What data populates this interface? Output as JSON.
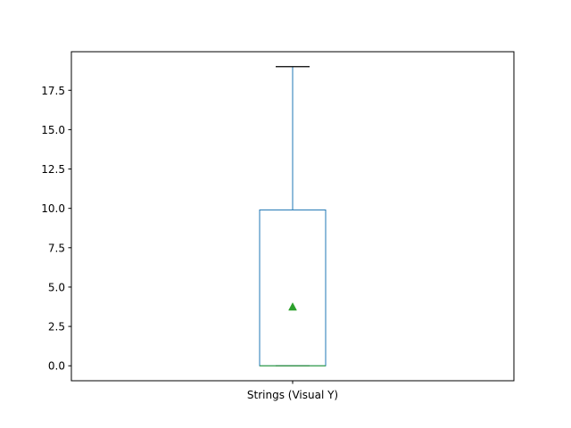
{
  "chart_data": {
    "type": "box",
    "title": "",
    "xlabel": "",
    "ylabel": "",
    "categories": [
      "Strings (Visual Y)"
    ],
    "ylim": [
      -0.95,
      19.95
    ],
    "yticks": [
      0.0,
      2.5,
      5.0,
      7.5,
      10.0,
      12.5,
      15.0,
      17.5
    ],
    "ytick_labels": [
      "0.0",
      "2.5",
      "5.0",
      "7.5",
      "10.0",
      "12.5",
      "15.0",
      "17.5"
    ],
    "boxes": [
      {
        "name": "Strings (Visual Y)",
        "whisker_low": 0,
        "q1": 0,
        "median": 0,
        "q3": 9.9,
        "whisker_high": 19,
        "mean": 3.75
      }
    ],
    "grid": false,
    "colors": {
      "box": "#1f77b4",
      "median": "#2ca02c",
      "mean": "#2ca02c",
      "cap": "#000000"
    }
  }
}
